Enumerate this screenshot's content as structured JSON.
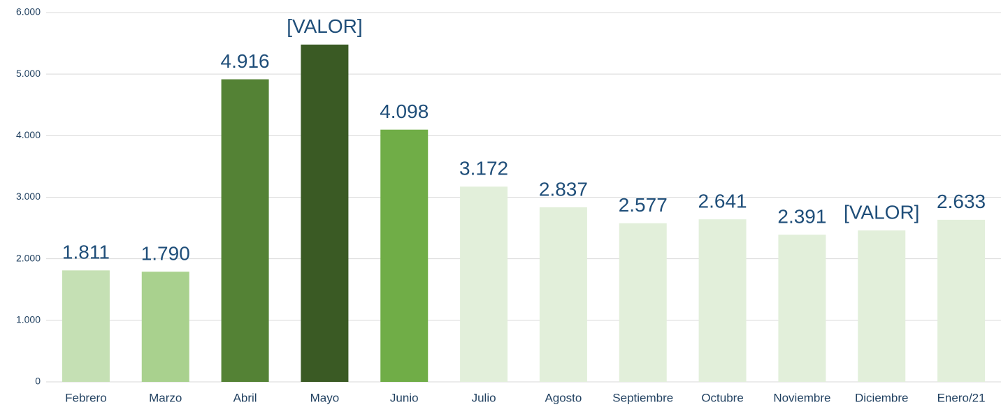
{
  "chart_data": {
    "type": "bar",
    "categories": [
      "Febrero",
      "Marzo",
      "Abril",
      "Mayo",
      "Junio",
      "Julio",
      "Agosto",
      "Septiembre",
      "Octubre",
      "Noviembre",
      "Diciembre",
      "Enero/21"
    ],
    "values": [
      1811,
      1790,
      4916,
      5480,
      4098,
      3172,
      2837,
      2577,
      2641,
      2391,
      2460,
      2633
    ],
    "value_labels": [
      "1.811",
      "1.790",
      "4.916",
      "[VALOR]",
      "4.098",
      "3.172",
      "2.837",
      "2.577",
      "2.641",
      "2.391",
      "[VALOR]",
      "2.633"
    ],
    "colors": [
      "#c5e0b4",
      "#a9d18e",
      "#548235",
      "#3a5a24",
      "#70ad47",
      "#e2efda",
      "#e2efda",
      "#e2efda",
      "#e2efda",
      "#e2efda",
      "#e2efda",
      "#e2efda"
    ],
    "ylim": [
      0,
      6000
    ],
    "yticks": [
      0,
      {
        "value": 1000,
        "label": "1.000"
      },
      {
        "value": 2000,
        "label": "2.000"
      },
      {
        "value": 3000,
        "label": "3.000"
      },
      {
        "value": 4000,
        "label": "4.000"
      },
      {
        "value": 5000,
        "label": "5.000"
      },
      {
        "value": 6000,
        "label": "6.000"
      }
    ],
    "grid": true
  }
}
